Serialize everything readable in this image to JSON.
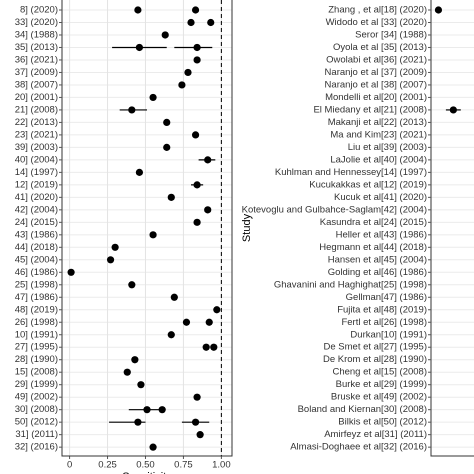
{
  "chart_data": [
    {
      "type": "forest",
      "x_label": "Sensitivity",
      "categories": [
        "8] (2020)",
        "33] (2020)",
        "34] (1988)",
        "35] (2013)",
        "36] (2021)",
        "37] (2009)",
        "38] (2007)",
        "20] (2001)",
        "21] (2008)",
        "22] (2013)",
        "23] (2021)",
        "39] (2003)",
        "40] (2004)",
        "14] (1997)",
        "12] (2019)",
        "41] (2020)",
        "42] (2004)",
        "24] (2015)",
        "43] (1986)",
        "44] (2018)",
        "45] (2004)",
        "46] (1986)",
        "25] (1998)",
        "47] (1986)",
        "48] (2019)",
        "26] (1998)",
        "10] (1991)",
        "27] (1995)",
        "28] (1990)",
        "15] (2008)",
        "29] (1999)",
        "49] (2002)",
        "30] (2008)",
        "50] (2012)",
        "31] (2011)",
        "32] (2016)"
      ],
      "estimates": [
        {
          "row": 0,
          "value": 0.45
        },
        {
          "row": 0,
          "value": 0.83
        },
        {
          "row": 1,
          "value": 0.8
        },
        {
          "row": 1,
          "value": 0.93
        },
        {
          "row": 2,
          "value": 0.63
        },
        {
          "row": 3,
          "value": 0.46,
          "ci": [
            0.28,
            0.64
          ]
        },
        {
          "row": 3,
          "value": 0.84,
          "ci": [
            0.69,
            0.94
          ]
        },
        {
          "row": 4,
          "value": 0.84
        },
        {
          "row": 5,
          "value": 0.78
        },
        {
          "row": 6,
          "value": 0.74
        },
        {
          "row": 7,
          "value": 0.55
        },
        {
          "row": 8,
          "value": 0.41,
          "ci": [
            0.33,
            0.51
          ]
        },
        {
          "row": 9,
          "value": 0.64
        },
        {
          "row": 10,
          "value": 0.83
        },
        {
          "row": 11,
          "value": 0.64
        },
        {
          "row": 12,
          "value": 0.91,
          "ci": [
            0.85,
            0.96
          ]
        },
        {
          "row": 13,
          "value": 0.46
        },
        {
          "row": 14,
          "value": 0.84,
          "ci": [
            0.8,
            0.88
          ]
        },
        {
          "row": 15,
          "value": 0.67
        },
        {
          "row": 16,
          "value": 0.91
        },
        {
          "row": 17,
          "value": 0.84
        },
        {
          "row": 18,
          "value": 0.55
        },
        {
          "row": 19,
          "value": 0.3
        },
        {
          "row": 20,
          "value": 0.27
        },
        {
          "row": 21,
          "value": 0.01
        },
        {
          "row": 22,
          "value": 0.41
        },
        {
          "row": 23,
          "value": 0.69
        },
        {
          "row": 24,
          "value": 0.97
        },
        {
          "row": 25,
          "value": 0.77
        },
        {
          "row": 25,
          "value": 0.92
        },
        {
          "row": 26,
          "value": 0.67
        },
        {
          "row": 27,
          "value": 0.9
        },
        {
          "row": 27,
          "value": 0.95
        },
        {
          "row": 28,
          "value": 0.43
        },
        {
          "row": 29,
          "value": 0.38
        },
        {
          "row": 30,
          "value": 0.47
        },
        {
          "row": 31,
          "value": 0.84
        },
        {
          "row": 32,
          "value": 0.51,
          "ci": [
            0.39,
            0.63
          ]
        },
        {
          "row": 32,
          "value": 0.61
        },
        {
          "row": 33,
          "value": 0.45,
          "ci": [
            0.26,
            0.5
          ]
        },
        {
          "row": 33,
          "value": 0.83,
          "ci": [
            0.74,
            0.92
          ]
        },
        {
          "row": 34,
          "value": 0.86
        },
        {
          "row": 35,
          "value": 0.55
        }
      ],
      "xlim": [
        -0.05,
        1.07
      ],
      "xticks": [
        0,
        0.25,
        {
          "value": 0.5,
          "label": "0.50"
        },
        0.75,
        {
          "value": 1,
          "label": "1.00"
        }
      ],
      "reference_line": 1,
      "grid": true,
      "color": "#000000"
    },
    {
      "type": "forest",
      "y_label": "Study",
      "categories": [
        "Zhang , et al[18] (2020)",
        "Widodo et al [33] (2020)",
        "Seror [34] (1988)",
        "Oyola et al [35] (2013)",
        "Owolabi et al[36] (2021)",
        "Naranjo et al [37] (2009)",
        "Naranjo et al [38] (2007)",
        "Mondelli et al[20] (2001)",
        "El Miedany et al[21] (2008)",
        "Makanji et al[22] (2013)",
        "Ma and Kim[23] (2021)",
        "Liu et al[39] (2003)",
        "LaJolie et al[40] (2004)",
        "Kuhlman and Hennessey[14] (1997)",
        "Kucukakkas et al[12] (2019)",
        "Kucuk et al[41] (2020)",
        "Kotevoglu and Gulbahce-Saglam[42] (2004)",
        "Kasundra et al[24] (2015)",
        "Heller et al[43] (1986)",
        "Hegmann et al[44] (2018)",
        "Hansen et al[45] (2004)",
        "Golding et al[46] (1986)",
        "Ghavanini and Haghighat[25] (1998)",
        "Gellman[47] (1986)",
        "Fujita et al[48] (2019)",
        "Fertl et al[26] (1998)",
        "Durkan[10] (1991)",
        "De Smet et al[27] (1995)",
        "De Krom et al[28] (1990)",
        "Cheng et al[15] (2008)",
        "Burke et al[29] (1999)",
        "Bruske et al[49] (2002)",
        "Boland and Kiernan[30] (2008)",
        "Bilkis et al[50] (2012)",
        "Amirfeyz et al[31] (2011)",
        "Almasi-Doghaee et al[32] (2016)"
      ],
      "estimates": [
        {
          "row": 0,
          "value": 0.05
        },
        {
          "row": 8,
          "value": 0.15,
          "ci": [
            0.1,
            0.2
          ]
        }
      ],
      "xlim": [
        0,
        1
      ],
      "grid": true,
      "color": "#000000"
    }
  ]
}
